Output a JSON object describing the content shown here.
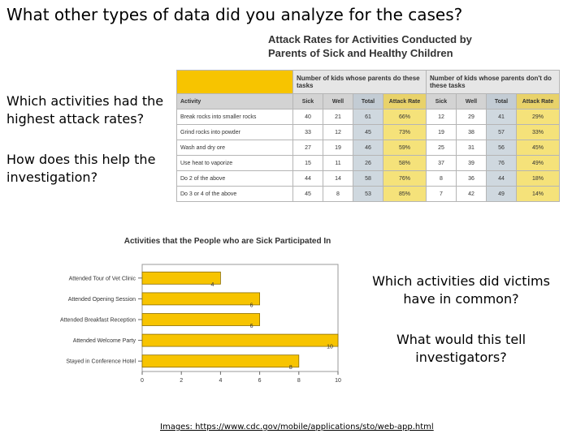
{
  "slide": {
    "title": "What other types of data did you analyze for the cases?",
    "question1": "Which activities had the highest attack rates?",
    "question2": "How does this help the investigation?",
    "question3": "Which activities did victims have in common?",
    "question4": "What would this tell investigators?",
    "credit": "Images: https://www.cdc.gov/mobile/applications/sto/web-app.html"
  },
  "table": {
    "title": "Attack Rates for Activities Conducted by Parents of Sick and Healthy Children",
    "group1": "Number of kids whose parents do these tasks",
    "group2": "Number of kids whose parents don't do these tasks",
    "headers": [
      "Activity",
      "Sick",
      "Well",
      "Total",
      "Attack Rate",
      "Sick",
      "Well",
      "Total",
      "Attack Rate"
    ],
    "rows": [
      {
        "activity": "Break rocks into smaller rocks",
        "sick1": "40",
        "well1": "21",
        "total1": "61",
        "rate1": "66%",
        "sick2": "12",
        "well2": "29",
        "total2": "41",
        "rate2": "29%"
      },
      {
        "activity": "Grind rocks into powder",
        "sick1": "33",
        "well1": "12",
        "total1": "45",
        "rate1": "73%",
        "sick2": "19",
        "well2": "38",
        "total2": "57",
        "rate2": "33%"
      },
      {
        "activity": "Wash and dry ore",
        "sick1": "27",
        "well1": "19",
        "total1": "46",
        "rate1": "59%",
        "sick2": "25",
        "well2": "31",
        "total2": "56",
        "rate2": "45%"
      },
      {
        "activity": "Use heat to vaporize",
        "sick1": "15",
        "well1": "11",
        "total1": "26",
        "rate1": "58%",
        "sick2": "37",
        "well2": "39",
        "total2": "76",
        "rate2": "49%"
      },
      {
        "activity": "Do 2 of the above",
        "sick1": "44",
        "well1": "14",
        "total1": "58",
        "rate1": "76%",
        "sick2": "8",
        "well2": "36",
        "total2": "44",
        "rate2": "18%"
      },
      {
        "activity": "Do 3 or 4 of the above",
        "sick1": "45",
        "well1": "8",
        "total1": "53",
        "rate1": "85%",
        "sick2": "7",
        "well2": "42",
        "total2": "49",
        "rate2": "14%"
      }
    ]
  },
  "chart_data": {
    "type": "bar",
    "orientation": "horizontal",
    "title": "Activities that the People who are Sick Participated In",
    "categories": [
      "Attended Tour of Vet Clinic",
      "Attended Opening Session",
      "Attended Breakfast Reception",
      "Attended Welcome Party",
      "Stayed in Conference Hotel"
    ],
    "values": [
      4,
      6,
      6,
      10,
      8
    ],
    "xlim": [
      0,
      10
    ],
    "xticks": [
      "0",
      "2",
      "4",
      "6",
      "8",
      "10"
    ],
    "bar_color": "#f7c400"
  }
}
